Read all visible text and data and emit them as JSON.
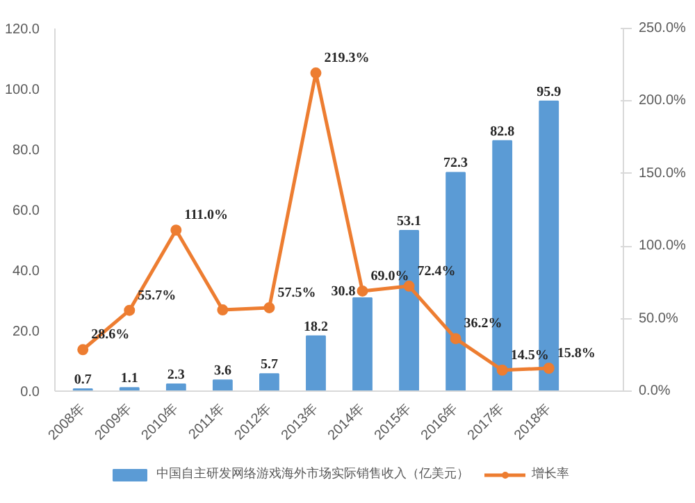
{
  "chart_data": {
    "type": "bar",
    "categories": [
      "2008年",
      "2009年",
      "2010年",
      "2011年",
      "2012年",
      "2013年",
      "2014年",
      "2015年",
      "2016年",
      "2017年",
      "2018年"
    ],
    "series": [
      {
        "name": "中国自主研发网络游戏海外市场实际销售收入（亿美元）",
        "color": "#5b9bd5",
        "values": [
          0.7,
          1.1,
          2.3,
          3.6,
          5.7,
          18.2,
          30.8,
          53.1,
          72.3,
          82.8,
          95.9
        ],
        "value_labels": [
          "0.7",
          "1.1",
          "2.3",
          "3.6",
          "5.7",
          "18.2",
          "30.8",
          "53.1",
          "72.3",
          "82.8",
          "95.9"
        ]
      },
      {
        "name": "增长率",
        "type": "line",
        "axis": "y2",
        "color": "#ed7d31",
        "values": [
          28.6,
          55.7,
          111.0,
          56,
          57.5,
          219.3,
          69.0,
          72.4,
          36.2,
          14.5,
          15.8
        ],
        "value_labels": [
          "28.6%",
          "55.7%",
          "111.0%",
          null,
          "57.5%",
          "219.3%",
          "69.0%",
          "72.4%",
          "36.2%",
          "14.5%",
          "15.8%"
        ]
      }
    ],
    "ylim": [
      0,
      120
    ],
    "yticks": [
      {
        "value": 0,
        "label": "0.0"
      },
      {
        "value": 20,
        "label": "20.0"
      },
      {
        "value": 40,
        "label": "40.0"
      },
      {
        "value": 60,
        "label": "60.0"
      },
      {
        "value": 80,
        "label": "80.0"
      },
      {
        "value": 100,
        "label": "100.0"
      },
      {
        "value": 120,
        "label": "120.0"
      }
    ],
    "y2lim": [
      0,
      250
    ],
    "y2ticks": [
      {
        "value": 0,
        "label": "0.0%"
      },
      {
        "value": 50,
        "label": "50.0%"
      },
      {
        "value": 100,
        "label": "100.0%"
      },
      {
        "value": 150,
        "label": "150.0%"
      },
      {
        "value": 200,
        "label": "200.0%"
      },
      {
        "value": 250,
        "label": "250.0%"
      }
    ],
    "marker": "circle",
    "line_style": "solid",
    "grid": false,
    "legend": "bottom"
  }
}
